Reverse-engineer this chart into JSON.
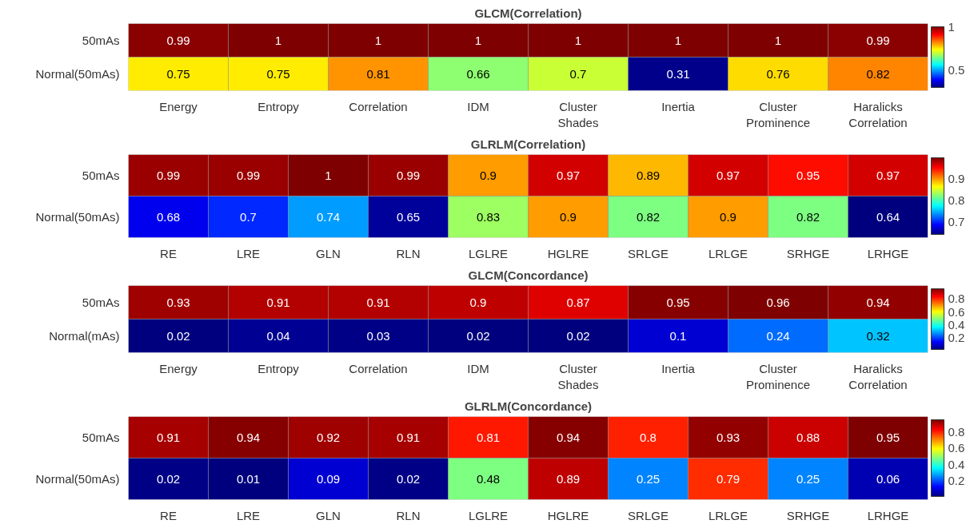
{
  "chart_data": [
    {
      "type": "heatmap",
      "title": "GLCM(Correlation)",
      "categories": [
        "Energy",
        "Entropy",
        "Correlation",
        "IDM",
        "Cluster Shades",
        "Inertia",
        "Cluster Prominence",
        "Haralicks Correlation"
      ],
      "y_categories": [
        "50mAs",
        "Normal(50mAs)"
      ],
      "cells": [
        [
          0.99,
          1,
          1,
          1,
          1,
          1,
          1,
          0.99
        ],
        [
          0.75,
          0.75,
          0.81,
          0.66,
          0.7,
          0.31,
          0.76,
          0.82
        ]
      ],
      "clim": [
        0.3,
        1
      ],
      "cticks": [
        0.5,
        1
      ],
      "data_labels": true
    },
    {
      "type": "heatmap",
      "title": "GLRLM(Correlation)",
      "categories": [
        "RE",
        "LRE",
        "GLN",
        "RLN",
        "LGLRE",
        "HGLRE",
        "SRLGE",
        "LRLGE",
        "SRHGE",
        "LRHGE"
      ],
      "y_categories": [
        "50mAs",
        "Normal(50mAs)"
      ],
      "cells": [
        [
          0.99,
          0.99,
          1,
          0.99,
          0.9,
          0.97,
          0.89,
          0.97,
          0.95,
          0.97
        ],
        [
          0.68,
          0.7,
          0.74,
          0.65,
          0.83,
          0.9,
          0.82,
          0.9,
          0.82,
          0.64
        ]
      ],
      "clim": [
        0.64,
        1
      ],
      "cticks": [
        0.7,
        0.8,
        0.9
      ],
      "data_labels": true
    },
    {
      "type": "heatmap",
      "title": "GLCM(Concordance)",
      "categories": [
        "Energy",
        "Entropy",
        "Correlation",
        "IDM",
        "Cluster Shades",
        "Inertia",
        "Cluster Prominence",
        "Haralicks Correlation"
      ],
      "y_categories": [
        "50mAs",
        "Normal(mAs)"
      ],
      "cells": [
        [
          0.93,
          0.91,
          0.91,
          0.9,
          0.87,
          0.95,
          0.96,
          0.94
        ],
        [
          0.02,
          0.04,
          0.03,
          0.02,
          0.02,
          0.1,
          0.24,
          0.32
        ]
      ],
      "clim": [
        0.02,
        0.96
      ],
      "cticks": [
        0.2,
        0.4,
        0.6,
        0.8
      ],
      "data_labels": true
    },
    {
      "type": "heatmap",
      "title": "GLRLM(Concordance)",
      "categories": [
        "RE",
        "LRE",
        "GLN",
        "RLN",
        "LGLRE",
        "HGLRE",
        "SRLGE",
        "LRLGE",
        "SRHGE",
        "LRHGE"
      ],
      "y_categories": [
        "50mAs",
        "Normal(50mAs)"
      ],
      "cells": [
        [
          0.91,
          0.94,
          0.92,
          0.91,
          0.81,
          0.94,
          0.8,
          0.93,
          0.88,
          0.95
        ],
        [
          0.02,
          0.01,
          0.09,
          0.02,
          0.48,
          0.89,
          0.25,
          0.79,
          0.25,
          0.06
        ]
      ],
      "clim": [
        0.01,
        0.95
      ],
      "cticks": [
        0.2,
        0.4,
        0.6,
        0.8
      ],
      "data_labels": true
    }
  ]
}
